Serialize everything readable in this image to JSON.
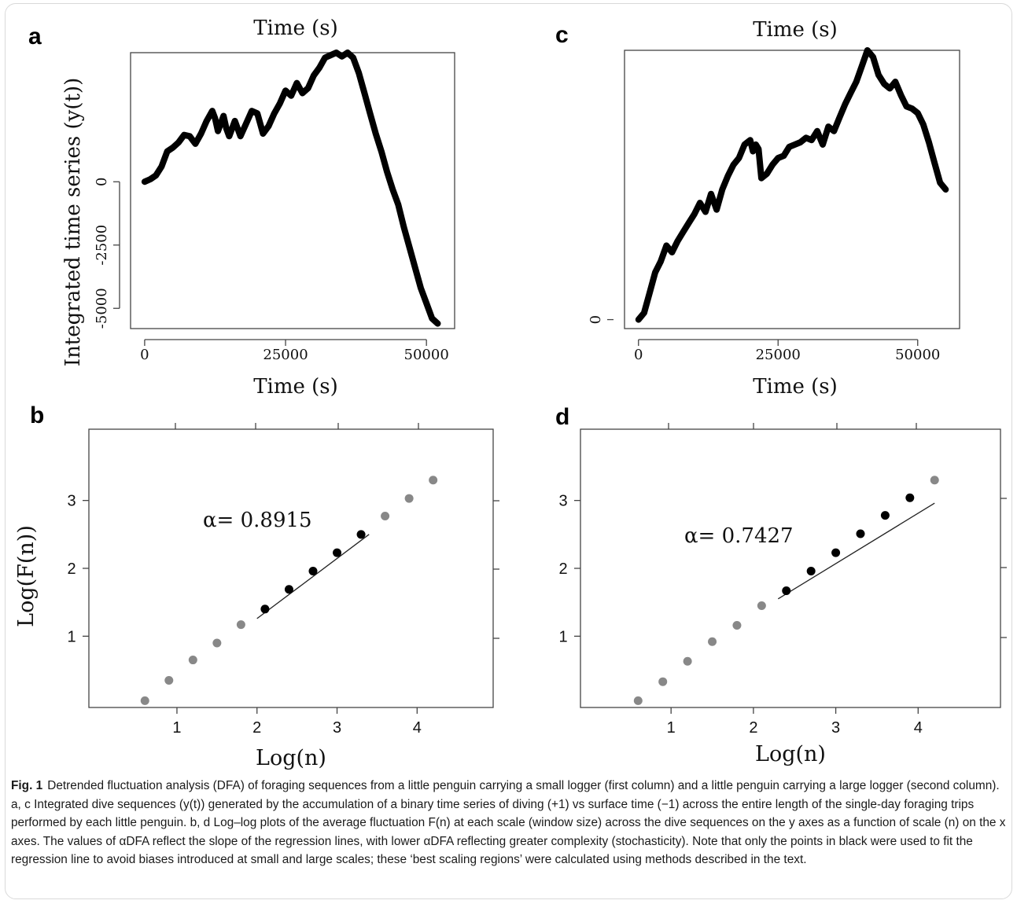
{
  "chart_data": [
    {
      "panel": "a",
      "type": "line",
      "top_label": "Time (s)",
      "xlabel": "Time (s)",
      "ylabel": "Integrated time series (y(t))",
      "xticks": [
        "0",
        "25000",
        "50000"
      ],
      "yticks": [
        "0",
        "-2500",
        "-5000"
      ],
      "xlim": [
        -2500,
        55000
      ],
      "ylim": [
        -5800,
        5100
      ],
      "series": [
        {
          "x": [
            0,
            1000,
            2000,
            3000,
            4000,
            5000,
            6000,
            7000,
            8000,
            9000,
            10000,
            11000,
            12000,
            12500,
            13000,
            14000,
            14500,
            15000,
            16000,
            17000,
            18000,
            19000,
            20000,
            21000,
            22000,
            23000,
            24000,
            25000,
            26000,
            27000,
            28000,
            29000,
            30000,
            31000,
            32000,
            33000,
            34000,
            35000,
            36000,
            37000,
            38000,
            39000,
            40000,
            41000,
            42000,
            43000,
            44000,
            45000,
            46000,
            47000,
            48000,
            49000,
            50000,
            51000,
            52000
          ],
          "y": [
            0,
            100,
            250,
            600,
            1200,
            1350,
            1550,
            1850,
            1800,
            1500,
            1900,
            2400,
            2800,
            2500,
            2000,
            2600,
            2100,
            1800,
            2400,
            1800,
            2300,
            2800,
            2700,
            1900,
            2200,
            2700,
            3100,
            3600,
            3400,
            3900,
            3500,
            3700,
            4200,
            4500,
            4900,
            5000,
            5100,
            4950,
            5100,
            4900,
            4300,
            3500,
            2700,
            1900,
            1200,
            400,
            -300,
            -900,
            -1800,
            -2600,
            -3400,
            -4200,
            -4800,
            -5400,
            -5600
          ]
        }
      ]
    },
    {
      "panel": "b",
      "type": "scatter",
      "xlabel": "Log(n)",
      "ylabel": "Log(F(n))",
      "xticks": [
        "1",
        "2",
        "3",
        "4"
      ],
      "yticks": [
        "1",
        "2",
        "3"
      ],
      "xlim": [
        -0.1,
        4.95
      ],
      "ylim": [
        -0.05,
        4.05
      ],
      "annotation": "α= 0.8915",
      "fit": {
        "x": [
          2.0,
          3.4
        ],
        "y": [
          1.26,
          2.5
        ]
      },
      "series": [
        {
          "color": "#888888",
          "x": [
            0.6,
            0.9,
            1.2,
            1.5,
            1.8,
            3.6,
            3.9,
            4.2
          ],
          "y": [
            0.05,
            0.35,
            0.65,
            0.9,
            1.17,
            2.77,
            3.03,
            3.3
          ]
        },
        {
          "color": "#000000",
          "x": [
            2.1,
            2.4,
            2.7,
            3.0,
            3.3
          ],
          "y": [
            1.4,
            1.69,
            1.96,
            2.23,
            2.5
          ]
        }
      ]
    },
    {
      "panel": "c",
      "type": "line",
      "top_label": "Time (s)",
      "xlabel": "Time (s)",
      "ylabel": "",
      "xticks": [
        "0",
        "25000",
        "50000"
      ],
      "yticks": [
        "0"
      ],
      "xlim": [
        -2500,
        57500
      ],
      "ylim": [
        -400,
        12000
      ],
      "series": [
        {
          "x": [
            0,
            1000,
            2000,
            3000,
            4000,
            5000,
            6000,
            7000,
            8000,
            9000,
            10000,
            11000,
            12000,
            13000,
            14000,
            15000,
            16000,
            17000,
            18000,
            19000,
            20000,
            20500,
            21000,
            21500,
            22000,
            23000,
            24000,
            25000,
            26000,
            27000,
            28000,
            29000,
            30000,
            31000,
            32000,
            33000,
            34000,
            35000,
            36000,
            37000,
            38000,
            39000,
            40000,
            41000,
            42000,
            43000,
            44000,
            45000,
            46000,
            47000,
            48000,
            49000,
            50000,
            51000,
            52000,
            53000,
            54000,
            55000
          ],
          "y": [
            0,
            300,
            1200,
            2100,
            2600,
            3300,
            3000,
            3500,
            3900,
            4300,
            4700,
            5200,
            4800,
            5600,
            4900,
            5800,
            6400,
            6900,
            7200,
            7800,
            8000,
            7500,
            7800,
            7600,
            6300,
            6500,
            6900,
            7200,
            7300,
            7700,
            7800,
            7900,
            8100,
            8000,
            8400,
            7800,
            8600,
            8400,
            9000,
            9600,
            10100,
            10600,
            11300,
            12000,
            11700,
            10900,
            10500,
            10300,
            10600,
            10000,
            9500,
            9400,
            9200,
            8700,
            7900,
            7000,
            6100,
            5800
          ]
        }
      ]
    },
    {
      "panel": "d",
      "type": "scatter",
      "xlabel": "Log(n)",
      "ylabel": "",
      "xticks": [
        "1",
        "2",
        "3",
        "4"
      ],
      "yticks": [
        "1",
        "2",
        "3"
      ],
      "xlim": [
        -0.1,
        5.0
      ],
      "ylim": [
        -0.05,
        4.05
      ],
      "annotation": "α= 0.7427",
      "fit": {
        "x": [
          2.3,
          4.2
        ],
        "y": [
          1.55,
          2.96
        ]
      },
      "series": [
        {
          "color": "#888888",
          "x": [
            0.6,
            0.9,
            1.2,
            1.5,
            1.8,
            2.1,
            4.2
          ],
          "y": [
            0.05,
            0.33,
            0.63,
            0.92,
            1.16,
            1.45,
            3.3
          ]
        },
        {
          "color": "#000000",
          "x": [
            2.4,
            2.7,
            3.0,
            3.3,
            3.6,
            3.9
          ],
          "y": [
            1.67,
            1.96,
            2.23,
            2.51,
            2.78,
            3.04
          ]
        }
      ]
    }
  ],
  "caption": {
    "label": "Fig. 1",
    "text": "Detrended fluctuation analysis (DFA) of foraging sequences from a little penguin carrying a small logger (first column) and a little penguin carrying a large logger (second column). a, c Integrated dive sequences (y(t)) generated by the accumulation of a binary time series of diving (+1) vs surface time (−1) across the entire length of the single-day foraging trips performed by each little penguin. b, d Log–log plots of the average fluctuation F(n) at each scale (window size) across the dive sequences on the y axes as a function of scale (n) on the x axes. The values of αDFA reflect the slope of the regression lines, with lower αDFA reflecting greater complexity (stochasticity). Note that only the points in black were used to fit the regression line to avoid biases introduced at small and large scales; these ‘best scaling regions’ were calculated using methods described in the text."
  }
}
